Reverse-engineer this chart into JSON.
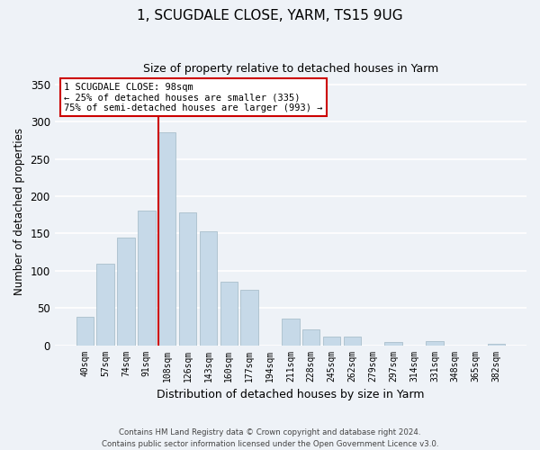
{
  "title": "1, SCUGDALE CLOSE, YARM, TS15 9UG",
  "subtitle": "Size of property relative to detached houses in Yarm",
  "xlabel": "Distribution of detached houses by size in Yarm",
  "ylabel": "Number of detached properties",
  "bar_labels": [
    "40sqm",
    "57sqm",
    "74sqm",
    "91sqm",
    "108sqm",
    "126sqm",
    "143sqm",
    "160sqm",
    "177sqm",
    "194sqm",
    "211sqm",
    "228sqm",
    "245sqm",
    "262sqm",
    "279sqm",
    "297sqm",
    "314sqm",
    "331sqm",
    "348sqm",
    "365sqm",
    "382sqm"
  ],
  "bar_values": [
    38,
    110,
    144,
    181,
    286,
    178,
    153,
    85,
    74,
    0,
    36,
    21,
    11,
    11,
    0,
    4,
    0,
    5,
    0,
    0,
    2
  ],
  "bar_color": "#c6d9e8",
  "bar_edge_color": "#aabfcc",
  "vline_color": "#cc0000",
  "annotation_text": "1 SCUGDALE CLOSE: 98sqm\n← 25% of detached houses are smaller (335)\n75% of semi-detached houses are larger (993) →",
  "annotation_box_facecolor": "#ffffff",
  "annotation_box_edgecolor": "#cc0000",
  "ylim": [
    0,
    360
  ],
  "yticks": [
    0,
    50,
    100,
    150,
    200,
    250,
    300,
    350
  ],
  "footer_line1": "Contains HM Land Registry data © Crown copyright and database right 2024.",
  "footer_line2": "Contains public sector information licensed under the Open Government Licence v3.0.",
  "background_color": "#eef2f7",
  "plot_background": "#eef2f7",
  "grid_color": "#ffffff",
  "vline_bar_index": 4
}
